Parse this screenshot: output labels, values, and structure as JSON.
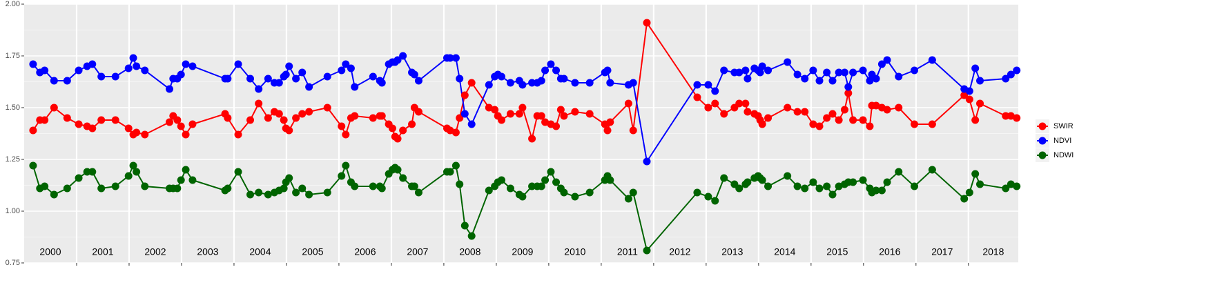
{
  "chart_data": {
    "type": "line",
    "x": [
      2000.17,
      2000.3,
      2000.39,
      2000.57,
      2000.82,
      2001.04,
      2001.2,
      2001.3,
      2001.47,
      2001.74,
      2001.99,
      2002.08,
      2002.14,
      2002.3,
      2002.77,
      2002.84,
      2002.92,
      2002.99,
      2003.08,
      2003.21,
      2003.83,
      2003.88,
      2004.08,
      2004.31,
      2004.47,
      2004.65,
      2004.77,
      2004.86,
      2004.95,
      2004.99,
      2005.05,
      2005.18,
      2005.3,
      2005.43,
      2005.78,
      2006.05,
      2006.13,
      2006.23,
      2006.3,
      2006.65,
      2006.78,
      2006.82,
      2006.95,
      2007.02,
      2007.07,
      2007.12,
      2007.22,
      2007.39,
      2007.44,
      2007.52,
      2008.06,
      2008.12,
      2008.23,
      2008.3,
      2008.4,
      2008.53,
      2008.86,
      2008.97,
      2009.03,
      2009.1,
      2009.27,
      2009.44,
      2009.5,
      2009.68,
      2009.78,
      2009.86,
      2009.93,
      2010.04,
      2010.14,
      2010.23,
      2010.29,
      2010.5,
      2010.78,
      2011.07,
      2011.12,
      2011.17,
      2011.52,
      2011.61,
      2011.87,
      2012.83,
      2013.04,
      2013.17,
      2013.34,
      2013.54,
      2013.63,
      2013.75,
      2013.79,
      2013.92,
      2013.99,
      2014.03,
      2014.07,
      2014.18,
      2014.55,
      2014.74,
      2014.88,
      2015.04,
      2015.16,
      2015.3,
      2015.41,
      2015.53,
      2015.64,
      2015.71,
      2015.8,
      2015.99,
      2016.12,
      2016.16,
      2016.24,
      2016.35,
      2016.45,
      2016.67,
      2016.97,
      2017.31,
      2017.92,
      2018.02,
      2018.13,
      2018.22,
      2018.71,
      2018.81,
      2018.92
    ],
    "series": [
      {
        "name": "SWIR",
        "color": "#ff0000",
        "values": [
          1.39,
          1.44,
          1.44,
          1.5,
          1.45,
          1.42,
          1.41,
          1.4,
          1.44,
          1.44,
          1.4,
          1.37,
          1.38,
          1.37,
          1.43,
          1.46,
          1.44,
          1.41,
          1.37,
          1.42,
          1.47,
          1.45,
          1.37,
          1.44,
          1.52,
          1.45,
          1.48,
          1.47,
          1.44,
          1.4,
          1.39,
          1.45,
          1.47,
          1.48,
          1.5,
          1.41,
          1.37,
          1.45,
          1.46,
          1.45,
          1.46,
          1.46,
          1.42,
          1.4,
          1.36,
          1.35,
          1.39,
          1.42,
          1.5,
          1.48,
          1.4,
          1.39,
          1.38,
          1.45,
          1.56,
          1.62,
          1.5,
          1.49,
          1.46,
          1.44,
          1.47,
          1.47,
          1.5,
          1.35,
          1.46,
          1.46,
          1.43,
          1.42,
          1.41,
          1.49,
          1.46,
          1.48,
          1.47,
          1.42,
          1.39,
          1.43,
          1.52,
          1.39,
          1.91,
          1.55,
          1.5,
          1.52,
          1.47,
          1.5,
          1.52,
          1.52,
          1.48,
          1.47,
          1.46,
          1.44,
          1.42,
          1.45,
          1.5,
          1.48,
          1.48,
          1.42,
          1.41,
          1.45,
          1.47,
          1.44,
          1.49,
          1.57,
          1.44,
          1.44,
          1.41,
          1.51,
          1.51,
          1.5,
          1.49,
          1.5,
          1.42,
          1.42,
          1.56,
          1.54,
          1.44,
          1.52,
          1.46,
          1.46,
          1.45
        ]
      },
      {
        "name": "NDVI",
        "color": "#0000ff",
        "values": [
          1.71,
          1.67,
          1.68,
          1.63,
          1.63,
          1.68,
          1.7,
          1.71,
          1.65,
          1.65,
          1.69,
          1.74,
          1.7,
          1.68,
          1.59,
          1.64,
          1.64,
          1.66,
          1.71,
          1.7,
          1.64,
          1.64,
          1.71,
          1.64,
          1.59,
          1.64,
          1.62,
          1.62,
          1.65,
          1.66,
          1.7,
          1.64,
          1.67,
          1.6,
          1.65,
          1.68,
          1.71,
          1.69,
          1.6,
          1.65,
          1.63,
          1.62,
          1.71,
          1.72,
          1.72,
          1.73,
          1.75,
          1.67,
          1.66,
          1.63,
          1.74,
          1.74,
          1.74,
          1.64,
          1.47,
          1.42,
          1.61,
          1.65,
          1.66,
          1.65,
          1.62,
          1.63,
          1.61,
          1.62,
          1.62,
          1.63,
          1.68,
          1.71,
          1.68,
          1.64,
          1.64,
          1.62,
          1.62,
          1.67,
          1.68,
          1.62,
          1.61,
          1.62,
          1.24,
          1.61,
          1.61,
          1.58,
          1.68,
          1.67,
          1.67,
          1.68,
          1.64,
          1.69,
          1.68,
          1.67,
          1.7,
          1.68,
          1.72,
          1.66,
          1.64,
          1.68,
          1.63,
          1.67,
          1.63,
          1.67,
          1.67,
          1.6,
          1.67,
          1.68,
          1.63,
          1.66,
          1.64,
          1.71,
          1.73,
          1.65,
          1.68,
          1.73,
          1.59,
          1.58,
          1.69,
          1.63,
          1.64,
          1.66,
          1.68
        ]
      },
      {
        "name": "NDWI",
        "color": "#006400",
        "values": [
          1.22,
          1.11,
          1.12,
          1.08,
          1.11,
          1.16,
          1.19,
          1.19,
          1.11,
          1.12,
          1.17,
          1.22,
          1.19,
          1.12,
          1.11,
          1.11,
          1.11,
          1.15,
          1.2,
          1.15,
          1.1,
          1.11,
          1.19,
          1.08,
          1.09,
          1.08,
          1.09,
          1.1,
          1.11,
          1.14,
          1.16,
          1.09,
          1.11,
          1.08,
          1.09,
          1.17,
          1.22,
          1.14,
          1.12,
          1.12,
          1.12,
          1.11,
          1.18,
          1.2,
          1.21,
          1.2,
          1.16,
          1.12,
          1.12,
          1.09,
          1.19,
          1.19,
          1.22,
          1.13,
          0.93,
          0.88,
          1.1,
          1.12,
          1.14,
          1.15,
          1.11,
          1.08,
          1.07,
          1.12,
          1.12,
          1.12,
          1.15,
          1.19,
          1.14,
          1.11,
          1.09,
          1.07,
          1.09,
          1.15,
          1.17,
          1.15,
          1.06,
          1.09,
          0.81,
          1.09,
          1.07,
          1.05,
          1.16,
          1.13,
          1.11,
          1.13,
          1.14,
          1.16,
          1.17,
          1.16,
          1.15,
          1.12,
          1.17,
          1.12,
          1.11,
          1.14,
          1.11,
          1.12,
          1.08,
          1.12,
          1.13,
          1.14,
          1.14,
          1.15,
          1.11,
          1.09,
          1.1,
          1.1,
          1.14,
          1.19,
          1.12,
          1.2,
          1.06,
          1.09,
          1.18,
          1.13,
          1.11,
          1.13,
          1.12
        ]
      }
    ],
    "xlim": [
      2000,
      2018.95
    ],
    "xticks": [
      2001,
      2002,
      2003,
      2004,
      2005,
      2006,
      2007,
      2008,
      2009,
      2010,
      2011,
      2012,
      2013,
      2014,
      2015,
      2016,
      2017,
      2018
    ],
    "periods": [
      "2000",
      "2001",
      "2002",
      "2003",
      "2004",
      "2005",
      "2006",
      "2007",
      "2008",
      "2009",
      "2010",
      "2011",
      "2012",
      "2013",
      "2014",
      "2015",
      "2016",
      "2017",
      "2018"
    ],
    "ylim": [
      0.75,
      2.0
    ],
    "yticks": [
      {
        "value": 0.75,
        "label": "0.75"
      },
      {
        "value": 1.0,
        "label": "1.00"
      },
      {
        "value": 1.25,
        "label": "1.25"
      },
      {
        "value": 1.5,
        "label": "1.50"
      },
      {
        "value": 1.75,
        "label": "1.75"
      },
      {
        "value": 2.0,
        "label": "2.00"
      }
    ],
    "grid": true,
    "legend": "right"
  }
}
